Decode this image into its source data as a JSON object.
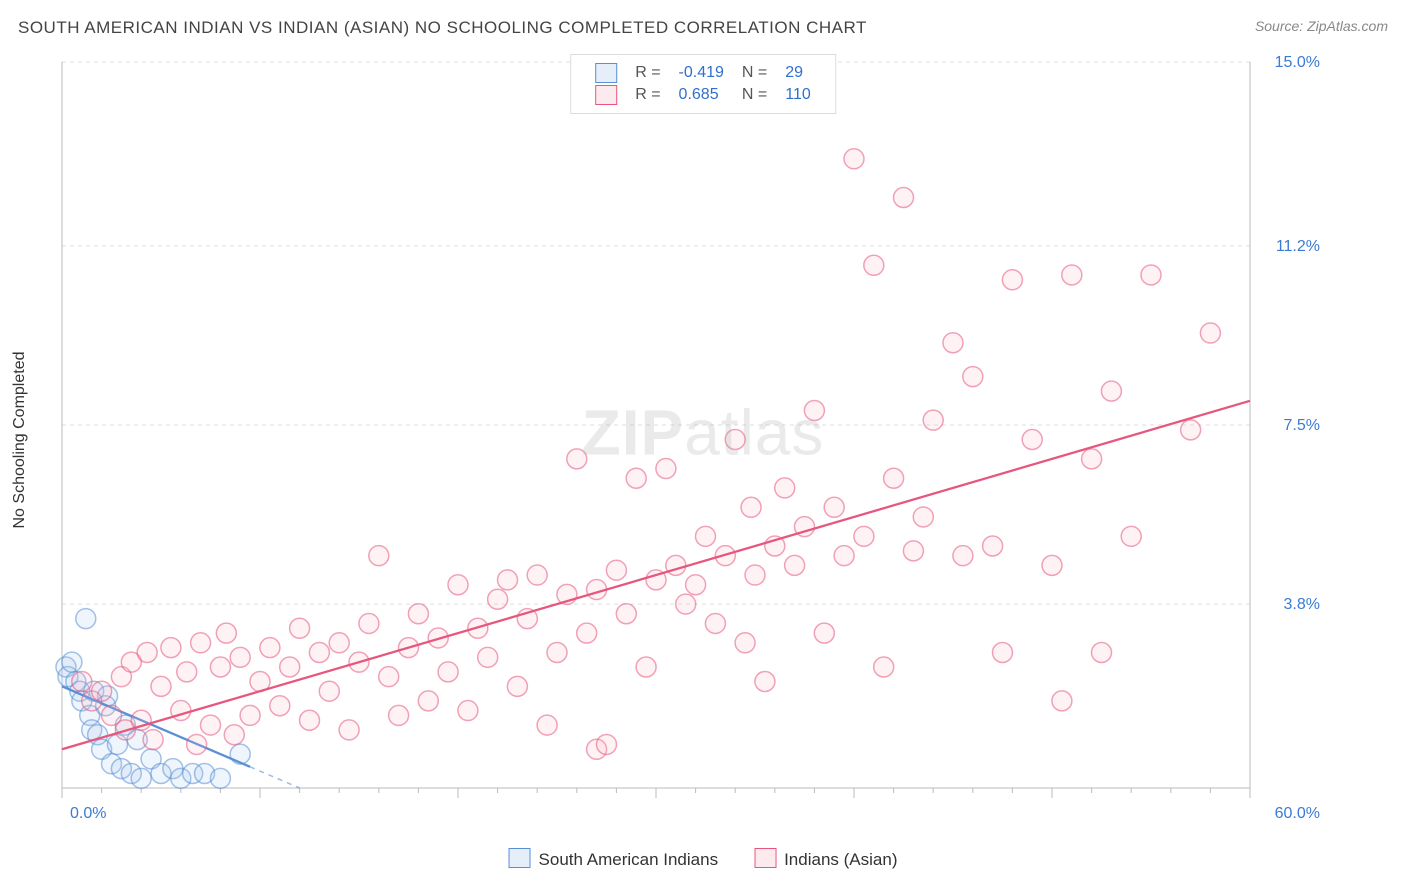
{
  "title": "SOUTH AMERICAN INDIAN VS INDIAN (ASIAN) NO SCHOOLING COMPLETED CORRELATION CHART",
  "source_label": "Source:",
  "source_value": "ZipAtlas.com",
  "ylabel": "No Schooling Completed",
  "watermark_zip": "ZIP",
  "watermark_atlas": "atlas",
  "chart": {
    "type": "scatter",
    "background_color": "#ffffff",
    "grid_color": "#dddddd",
    "axis_color": "#bbbbbb",
    "label_color": "#3a7bd5",
    "xlim": [
      0,
      60
    ],
    "ylim": [
      0,
      15
    ],
    "x_ticks_major_step": 10,
    "x_ticks_minor_step": 2,
    "y_ticks": [
      {
        "v": 3.8,
        "label": "3.8%"
      },
      {
        "v": 7.5,
        "label": "7.5%"
      },
      {
        "v": 11.2,
        "label": "11.2%"
      },
      {
        "v": 15.0,
        "label": "15.0%"
      }
    ],
    "x_tick_labels": {
      "min": "0.0%",
      "max": "60.0%"
    },
    "marker_radius": 10,
    "marker_stroke_width": 1.5,
    "fill_opacity": 0.18,
    "series": [
      {
        "name": "South American Indians",
        "stroke": "#5a8fd6",
        "fill": "#a9c6ec",
        "R": "-0.419",
        "N": "29",
        "regression": {
          "x1": 0,
          "y1": 2.1,
          "x2": 12,
          "y2": 0.0,
          "dashed_after_x": 9.5
        },
        "points": [
          [
            0.2,
            2.5
          ],
          [
            0.3,
            2.3
          ],
          [
            0.5,
            2.6
          ],
          [
            0.7,
            2.2
          ],
          [
            0.9,
            2.0
          ],
          [
            1.0,
            1.8
          ],
          [
            1.2,
            3.5
          ],
          [
            1.4,
            1.5
          ],
          [
            1.5,
            1.2
          ],
          [
            1.6,
            2.0
          ],
          [
            1.8,
            1.1
          ],
          [
            2.0,
            0.8
          ],
          [
            2.2,
            1.7
          ],
          [
            2.3,
            1.9
          ],
          [
            2.5,
            0.5
          ],
          [
            2.8,
            0.9
          ],
          [
            3.0,
            0.4
          ],
          [
            3.2,
            1.3
          ],
          [
            3.5,
            0.3
          ],
          [
            3.8,
            1.0
          ],
          [
            4.0,
            0.2
          ],
          [
            4.5,
            0.6
          ],
          [
            5.0,
            0.3
          ],
          [
            5.6,
            0.4
          ],
          [
            6.0,
            0.2
          ],
          [
            6.6,
            0.3
          ],
          [
            7.2,
            0.3
          ],
          [
            8.0,
            0.2
          ],
          [
            9.0,
            0.7
          ]
        ]
      },
      {
        "name": "Indians (Asian)",
        "stroke": "#e6577e",
        "fill": "#f7b8c6",
        "R": "0.685",
        "N": "110",
        "regression": {
          "x1": 0,
          "y1": 0.8,
          "x2": 60,
          "y2": 8.0,
          "dashed_after_x": 60
        },
        "points": [
          [
            1,
            2.2
          ],
          [
            1.5,
            1.8
          ],
          [
            2,
            2.0
          ],
          [
            2.5,
            1.5
          ],
          [
            3,
            2.3
          ],
          [
            3.2,
            1.2
          ],
          [
            3.5,
            2.6
          ],
          [
            4,
            1.4
          ],
          [
            4.3,
            2.8
          ],
          [
            4.6,
            1.0
          ],
          [
            5,
            2.1
          ],
          [
            5.5,
            2.9
          ],
          [
            6,
            1.6
          ],
          [
            6.3,
            2.4
          ],
          [
            6.8,
            0.9
          ],
          [
            7,
            3.0
          ],
          [
            7.5,
            1.3
          ],
          [
            8,
            2.5
          ],
          [
            8.3,
            3.2
          ],
          [
            8.7,
            1.1
          ],
          [
            9,
            2.7
          ],
          [
            9.5,
            1.5
          ],
          [
            10,
            2.2
          ],
          [
            10.5,
            2.9
          ],
          [
            11,
            1.7
          ],
          [
            11.5,
            2.5
          ],
          [
            12,
            3.3
          ],
          [
            12.5,
            1.4
          ],
          [
            13,
            2.8
          ],
          [
            13.5,
            2.0
          ],
          [
            14,
            3.0
          ],
          [
            14.5,
            1.2
          ],
          [
            15,
            2.6
          ],
          [
            15.5,
            3.4
          ],
          [
            16,
            4.8
          ],
          [
            16.5,
            2.3
          ],
          [
            17,
            1.5
          ],
          [
            17.5,
            2.9
          ],
          [
            18,
            3.6
          ],
          [
            18.5,
            1.8
          ],
          [
            19,
            3.1
          ],
          [
            19.5,
            2.4
          ],
          [
            20,
            4.2
          ],
          [
            20.5,
            1.6
          ],
          [
            21,
            3.3
          ],
          [
            21.5,
            2.7
          ],
          [
            22,
            3.9
          ],
          [
            22.5,
            4.3
          ],
          [
            23,
            2.1
          ],
          [
            23.5,
            3.5
          ],
          [
            24,
            4.4
          ],
          [
            24.5,
            1.3
          ],
          [
            25,
            2.8
          ],
          [
            25.5,
            4.0
          ],
          [
            26,
            6.8
          ],
          [
            26.5,
            3.2
          ],
          [
            27,
            4.1
          ],
          [
            27,
            0.8
          ],
          [
            27.5,
            0.9
          ],
          [
            28,
            4.5
          ],
          [
            28.5,
            3.6
          ],
          [
            29,
            6.4
          ],
          [
            29.5,
            2.5
          ],
          [
            30,
            4.3
          ],
          [
            30.5,
            6.6
          ],
          [
            31,
            4.6
          ],
          [
            31.5,
            3.8
          ],
          [
            32,
            4.2
          ],
          [
            32.5,
            5.2
          ],
          [
            33,
            3.4
          ],
          [
            33.5,
            4.8
          ],
          [
            34,
            7.2
          ],
          [
            34.5,
            3.0
          ],
          [
            34.8,
            5.8
          ],
          [
            35,
            4.4
          ],
          [
            35.5,
            2.2
          ],
          [
            36,
            5.0
          ],
          [
            36.5,
            6.2
          ],
          [
            37,
            4.6
          ],
          [
            37.5,
            5.4
          ],
          [
            38,
            7.8
          ],
          [
            38.5,
            3.2
          ],
          [
            39,
            5.8
          ],
          [
            39.5,
            4.8
          ],
          [
            40,
            13.0
          ],
          [
            40.5,
            5.2
          ],
          [
            41,
            10.8
          ],
          [
            41.5,
            2.5
          ],
          [
            42,
            6.4
          ],
          [
            42.5,
            12.2
          ],
          [
            43,
            4.9
          ],
          [
            43.5,
            5.6
          ],
          [
            44,
            7.6
          ],
          [
            45,
            9.2
          ],
          [
            45.5,
            4.8
          ],
          [
            46,
            8.5
          ],
          [
            47,
            5.0
          ],
          [
            47.5,
            2.8
          ],
          [
            48,
            10.5
          ],
          [
            49,
            7.2
          ],
          [
            50,
            4.6
          ],
          [
            50.5,
            1.8
          ],
          [
            51,
            10.6
          ],
          [
            52,
            6.8
          ],
          [
            53,
            8.2
          ],
          [
            54,
            5.2
          ],
          [
            55,
            10.6
          ],
          [
            57,
            7.4
          ],
          [
            58,
            9.4
          ],
          [
            52.5,
            2.8
          ]
        ]
      }
    ]
  },
  "legend_top": {
    "r_label": "R =",
    "n_label": "N ="
  }
}
